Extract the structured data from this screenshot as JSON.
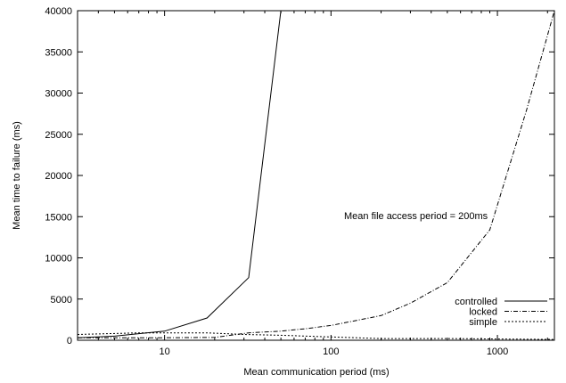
{
  "chart_data": {
    "type": "line",
    "title": "",
    "xlabel": "Mean communication period (ms)",
    "ylabel": "Mean time to failure (ms)",
    "xscale": "log",
    "xlim": [
      3,
      2200
    ],
    "ylim": [
      0,
      40000
    ],
    "x_ticks": [
      10,
      100,
      1000
    ],
    "x_tick_labels": [
      "10",
      "100",
      "1000"
    ],
    "y_ticks": [
      0,
      5000,
      10000,
      15000,
      20000,
      25000,
      30000,
      35000,
      40000
    ],
    "y_tick_labels": [
      "0",
      "5000",
      "10000",
      "15000",
      "20000",
      "25000",
      "30000",
      "35000",
      "40000"
    ],
    "grid": false,
    "legend_position": "bottom-right",
    "annotation": "Mean file access period = 200ms",
    "series": [
      {
        "name": "controlled",
        "style": "solid",
        "x": [
          3,
          5,
          7,
          10,
          18,
          32,
          50
        ],
        "y": [
          300,
          500,
          800,
          1100,
          2700,
          7600,
          40000
        ]
      },
      {
        "name": "locked",
        "style": "dashdot",
        "x": [
          3,
          10,
          20,
          32,
          50,
          70,
          100,
          200,
          300,
          500,
          900,
          1500,
          2200
        ],
        "y": [
          300,
          300,
          350,
          900,
          1100,
          1400,
          1800,
          3000,
          4500,
          7000,
          13400,
          28000,
          40000
        ]
      },
      {
        "name": "simple",
        "style": "dotted",
        "x": [
          3,
          7,
          10,
          18,
          30,
          50,
          100,
          200,
          500,
          1000,
          2200
        ],
        "y": [
          700,
          900,
          900,
          900,
          700,
          600,
          400,
          200,
          200,
          150,
          100
        ]
      }
    ]
  }
}
